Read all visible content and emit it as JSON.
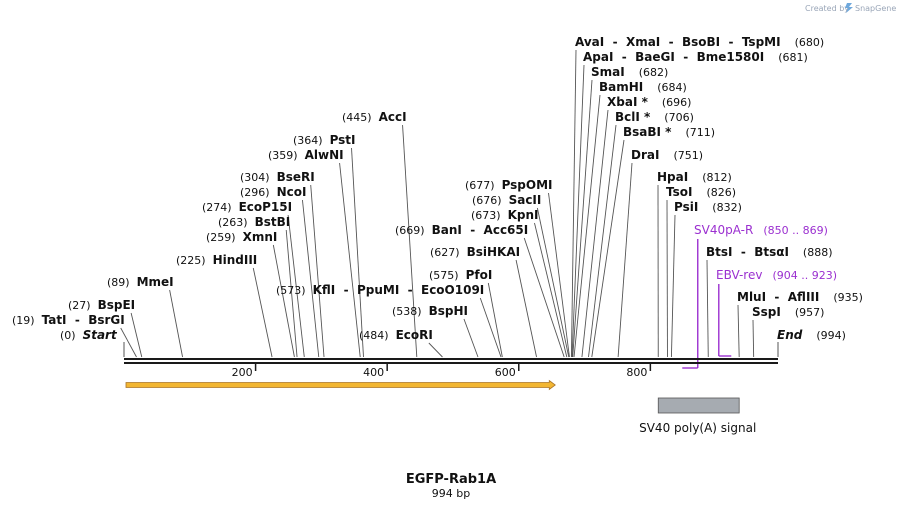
{
  "credit": {
    "prefix": "Created by",
    "brand": "SnapGene"
  },
  "map": {
    "title": "EGFP-Rab1A",
    "length_label": "994 bp",
    "length": 994,
    "tick_labels": [
      "200",
      "400",
      "600",
      "800"
    ],
    "tick_positions": [
      200,
      400,
      600,
      800
    ]
  },
  "enzymes": [
    {
      "id": "start",
      "names": [
        "Start"
      ],
      "pos_label": "(0)",
      "site": 0,
      "italic": true,
      "pos_first": true
    },
    {
      "id": "tati",
      "names": [
        "TatI",
        "BsrGI"
      ],
      "pos_label": "(19)",
      "site": 19,
      "pos_first": true
    },
    {
      "id": "bspei",
      "names": [
        "BspEI"
      ],
      "pos_label": "(27)",
      "site": 27,
      "pos_first": true
    },
    {
      "id": "mmei",
      "names": [
        "MmeI"
      ],
      "pos_label": "(89)",
      "site": 89,
      "pos_first": true
    },
    {
      "id": "hindiii",
      "names": [
        "HindIII"
      ],
      "pos_label": "(225)",
      "site": 225,
      "pos_first": true
    },
    {
      "id": "xmni",
      "names": [
        "XmnI"
      ],
      "pos_label": "(259)",
      "site": 259,
      "pos_first": true
    },
    {
      "id": "bstbi",
      "names": [
        "BstBI"
      ],
      "pos_label": "(263)",
      "site": 263,
      "pos_first": true
    },
    {
      "id": "ecop15i",
      "names": [
        "EcoP15I"
      ],
      "pos_label": "(274)",
      "site": 274,
      "pos_first": true
    },
    {
      "id": "ncoi",
      "names": [
        "NcoI"
      ],
      "pos_label": "(296)",
      "site": 296,
      "pos_first": true
    },
    {
      "id": "bseri",
      "names": [
        "BseRI"
      ],
      "pos_label": "(304)",
      "site": 304,
      "pos_first": true
    },
    {
      "id": "alwnii",
      "names": [
        "AlwNI"
      ],
      "pos_label": "(359)",
      "site": 359,
      "pos_first": true
    },
    {
      "id": "psti",
      "names": [
        "PstI"
      ],
      "pos_label": "(364)",
      "site": 364,
      "pos_first": true
    },
    {
      "id": "acci",
      "names": [
        "AccI"
      ],
      "pos_label": "(445)",
      "site": 445,
      "pos_first": true
    },
    {
      "id": "kfli",
      "names": [
        "KflI",
        "PpuMI",
        "EcoO109I"
      ],
      "pos_label": "(573)",
      "site": 573,
      "pos_first": true
    },
    {
      "id": "ecori",
      "names": [
        "EcoRI"
      ],
      "pos_label": "(484)",
      "site": 484,
      "pos_first": true
    },
    {
      "id": "bsphi",
      "names": [
        "BspHI"
      ],
      "pos_label": "(538)",
      "site": 538,
      "pos_first": true
    },
    {
      "id": "pfoi",
      "names": [
        "PfoI"
      ],
      "pos_label": "(575)",
      "site": 575,
      "pos_first": true
    },
    {
      "id": "bsihkai",
      "names": [
        "BsiHKAI"
      ],
      "pos_label": "(627)",
      "site": 627,
      "pos_first": true
    },
    {
      "id": "bani",
      "names": [
        "BanI",
        "Acc65I"
      ],
      "pos_label": "(669)",
      "site": 669,
      "pos_first": true
    },
    {
      "id": "kpni",
      "names": [
        "KpnI"
      ],
      "pos_label": "(673)",
      "site": 673,
      "pos_first": true
    },
    {
      "id": "sacii",
      "names": [
        "SacII"
      ],
      "pos_label": "(676)",
      "site": 676,
      "pos_first": true
    },
    {
      "id": "pspomi",
      "names": [
        "PspOMI"
      ],
      "pos_label": "(677)",
      "site": 677,
      "pos_first": true
    },
    {
      "id": "avai",
      "names": [
        "AvaI",
        "XmaI",
        "BsoBI",
        "TspMI"
      ],
      "pos_label": "(680)",
      "site": 680,
      "pos_first": false
    },
    {
      "id": "apai",
      "names": [
        "ApaI",
        "BaeGI",
        "Bme1580I"
      ],
      "pos_label": "(681)",
      "site": 681,
      "pos_first": false
    },
    {
      "id": "smai",
      "names": [
        "SmaI"
      ],
      "pos_label": "(682)",
      "site": 682,
      "pos_first": false
    },
    {
      "id": "bamhi",
      "names": [
        "BamHI"
      ],
      "pos_label": "(684)",
      "site": 684,
      "pos_first": false
    },
    {
      "id": "xbai",
      "names": [
        "XbaI *"
      ],
      "pos_label": "(696)",
      "site": 696,
      "pos_first": false
    },
    {
      "id": "bcli",
      "names": [
        "BclI *"
      ],
      "pos_label": "(706)",
      "site": 706,
      "pos_first": false
    },
    {
      "id": "bsabi",
      "names": [
        "BsaBI *"
      ],
      "pos_label": "(711)",
      "site": 711,
      "pos_first": false
    },
    {
      "id": "drai",
      "names": [
        "DraI"
      ],
      "pos_label": "(751)",
      "site": 751,
      "pos_first": false
    },
    {
      "id": "hpai",
      "names": [
        "HpaI"
      ],
      "pos_label": "(812)",
      "site": 812,
      "pos_first": false
    },
    {
      "id": "tsoi",
      "names": [
        "TsoI"
      ],
      "pos_label": "(826)",
      "site": 826,
      "pos_first": false
    },
    {
      "id": "psii",
      "names": [
        "PsiI"
      ],
      "pos_label": "(832)",
      "site": 832,
      "pos_first": false
    },
    {
      "id": "btsi",
      "names": [
        "BtsI",
        "BtsαI"
      ],
      "pos_label": "(888)",
      "site": 888,
      "pos_first": false
    },
    {
      "id": "mlui",
      "names": [
        "MluI",
        "AflIII"
      ],
      "pos_label": "(935)",
      "site": 935,
      "pos_first": false
    },
    {
      "id": "sspi",
      "names": [
        "SspI"
      ],
      "pos_label": "(957)",
      "site": 957,
      "pos_first": false
    },
    {
      "id": "end",
      "names": [
        "End"
      ],
      "pos_label": "(994)",
      "site": 994,
      "italic": true,
      "pos_first": false
    }
  ],
  "primers": [
    {
      "id": "sv40pa-r",
      "name": "SV40pA-R",
      "range_label": "(850 .. 869)",
      "start": 850,
      "end": 869,
      "direction": "reverse"
    },
    {
      "id": "ebv-rev",
      "name": "EBV-rev",
      "range_label": "(904 .. 923)",
      "start": 904,
      "end": 923,
      "direction": "reverse"
    }
  ],
  "features": [
    {
      "id": "orf-arrow",
      "type": "arrow",
      "start": 0,
      "end": 657,
      "color": "#f2b632",
      "label": ""
    },
    {
      "id": "sv40-polya",
      "type": "box",
      "start": 812,
      "end": 935,
      "color": "#a6abb1",
      "label": "SV40 poly(A) signal"
    }
  ],
  "colors": {
    "backbone": "#1a1a1a",
    "leader": "#555555",
    "primer": "#9b30d0",
    "arrow_fill": "#f2b632",
    "arrow_outline": "#a8742a",
    "feature_box": "#a6abb1"
  }
}
